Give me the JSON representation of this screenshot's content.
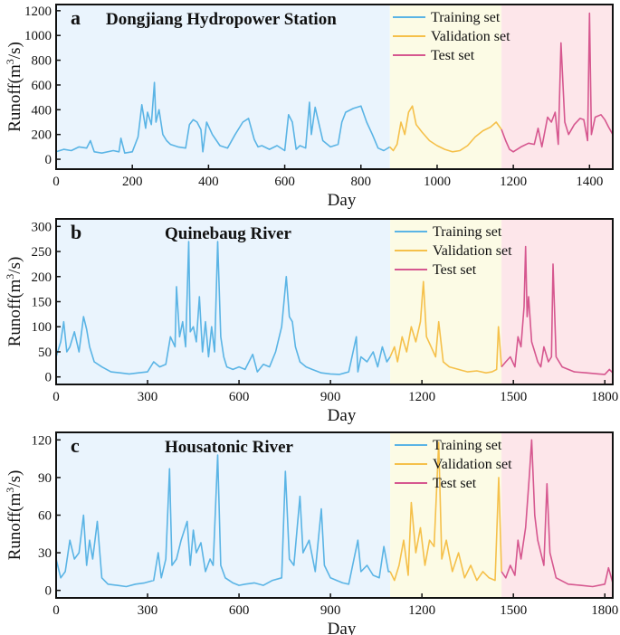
{
  "chart_data": [
    {
      "type": "line",
      "panel": "a",
      "title": "Dongjiang Hydropower Station",
      "xlabel": "Day",
      "ylabel_parts": [
        "Runoff(m",
        "3",
        "/s)"
      ],
      "xlim": [
        0,
        1461
      ],
      "ylim": [
        -80,
        1250
      ],
      "xticks": [
        0,
        200,
        400,
        600,
        800,
        1000,
        1200,
        1400
      ],
      "yticks": [
        0,
        200,
        400,
        600,
        800,
        1000,
        1200
      ],
      "splits": {
        "train_end": 876,
        "val_end": 1169
      },
      "legend": {
        "position": "top-center",
        "entries": [
          "Training set",
          "Validation set",
          "Test set"
        ]
      },
      "series": [
        {
          "name": "Training set",
          "color": "#5ab4e5",
          "x": [
            0,
            20,
            40,
            60,
            80,
            90,
            100,
            120,
            150,
            165,
            170,
            180,
            200,
            215,
            225,
            235,
            240,
            250,
            258,
            262,
            270,
            280,
            290,
            300,
            320,
            340,
            350,
            360,
            370,
            380,
            385,
            395,
            410,
            430,
            450,
            470,
            490,
            505,
            520,
            530,
            540,
            560,
            580,
            600,
            610,
            620,
            630,
            640,
            655,
            665,
            670,
            680,
            700,
            720,
            740,
            750,
            760,
            780,
            800,
            815,
            830,
            845,
            860,
            876
          ],
          "y": [
            60,
            80,
            70,
            100,
            90,
            150,
            60,
            50,
            70,
            60,
            170,
            50,
            60,
            180,
            440,
            250,
            380,
            280,
            620,
            300,
            400,
            200,
            150,
            120,
            100,
            90,
            280,
            320,
            300,
            240,
            60,
            300,
            200,
            110,
            90,
            200,
            300,
            330,
            160,
            100,
            110,
            80,
            110,
            70,
            360,
            300,
            80,
            110,
            90,
            460,
            200,
            420,
            150,
            100,
            120,
            300,
            380,
            410,
            430,
            300,
            200,
            90,
            70,
            100
          ]
        },
        {
          "name": "Validation set",
          "color": "#f5c04a",
          "x": [
            876,
            885,
            895,
            905,
            915,
            925,
            935,
            945,
            960,
            980,
            1000,
            1020,
            1040,
            1060,
            1080,
            1100,
            1120,
            1140,
            1155,
            1169
          ],
          "y": [
            100,
            70,
            120,
            300,
            200,
            380,
            430,
            280,
            220,
            150,
            110,
            80,
            60,
            70,
            110,
            180,
            230,
            260,
            300,
            240
          ]
        },
        {
          "name": "Test set",
          "color": "#d6578f",
          "x": [
            1169,
            1180,
            1190,
            1200,
            1220,
            1240,
            1255,
            1265,
            1275,
            1290,
            1300,
            1310,
            1318,
            1325,
            1335,
            1345,
            1360,
            1375,
            1385,
            1395,
            1400,
            1405,
            1415,
            1430,
            1440,
            1450,
            1461
          ],
          "y": [
            240,
            150,
            80,
            60,
            100,
            130,
            120,
            250,
            100,
            340,
            300,
            380,
            120,
            940,
            300,
            200,
            280,
            330,
            320,
            150,
            1180,
            200,
            340,
            360,
            320,
            260,
            200
          ]
        }
      ]
    },
    {
      "type": "line",
      "panel": "b",
      "title": "Quinebaug River",
      "xlabel": "Day",
      "ylabel_parts": [
        "Runoff(m",
        "3",
        "/s)"
      ],
      "xlim": [
        0,
        1826
      ],
      "ylim": [
        -15,
        315
      ],
      "xticks": [
        0,
        300,
        600,
        900,
        1200,
        1500,
        1800
      ],
      "yticks": [
        0,
        50,
        100,
        150,
        200,
        250,
        300
      ],
      "splits": {
        "train_end": 1096,
        "val_end": 1461
      },
      "legend": {
        "position": "top-center",
        "entries": [
          "Training set",
          "Validation set",
          "Test set"
        ]
      },
      "series": [
        {
          "name": "Training set",
          "color": "#5ab4e5",
          "x": [
            0,
            15,
            25,
            35,
            45,
            60,
            75,
            90,
            100,
            110,
            125,
            150,
            180,
            210,
            240,
            270,
            300,
            320,
            340,
            360,
            375,
            390,
            395,
            405,
            415,
            425,
            435,
            440,
            450,
            460,
            470,
            480,
            490,
            500,
            510,
            520,
            530,
            540,
            550,
            560,
            580,
            600,
            620,
            645,
            660,
            680,
            700,
            720,
            740,
            755,
            765,
            775,
            785,
            800,
            820,
            840,
            870,
            900,
            930,
            960,
            985,
            990,
            1000,
            1020,
            1040,
            1055,
            1070,
            1085,
            1096
          ],
          "y": [
            40,
            70,
            110,
            50,
            60,
            90,
            50,
            120,
            95,
            60,
            30,
            20,
            10,
            8,
            6,
            8,
            10,
            30,
            20,
            25,
            80,
            60,
            180,
            80,
            110,
            60,
            270,
            90,
            100,
            70,
            160,
            50,
            110,
            40,
            100,
            50,
            270,
            80,
            40,
            20,
            15,
            20,
            15,
            45,
            10,
            25,
            20,
            50,
            100,
            200,
            120,
            110,
            60,
            30,
            20,
            15,
            8,
            6,
            5,
            10,
            80,
            10,
            40,
            30,
            50,
            20,
            60,
            30,
            40
          ]
        },
        {
          "name": "Validation set",
          "color": "#f5c04a",
          "x": [
            1096,
            1110,
            1120,
            1135,
            1150,
            1165,
            1180,
            1195,
            1205,
            1215,
            1230,
            1245,
            1255,
            1270,
            1290,
            1320,
            1350,
            1380,
            1410,
            1430,
            1445,
            1451,
            1461
          ],
          "y": [
            40,
            60,
            30,
            80,
            50,
            100,
            70,
            110,
            190,
            80,
            60,
            40,
            110,
            30,
            20,
            15,
            10,
            12,
            8,
            10,
            15,
            100,
            20
          ]
        },
        {
          "name": "Test set",
          "color": "#d6578f",
          "x": [
            1461,
            1475,
            1490,
            1505,
            1515,
            1525,
            1535,
            1540,
            1545,
            1550,
            1560,
            1570,
            1580,
            1590,
            1600,
            1615,
            1625,
            1630,
            1640,
            1660,
            1700,
            1740,
            1780,
            1800,
            1815,
            1826
          ],
          "y": [
            20,
            30,
            40,
            20,
            80,
            60,
            140,
            260,
            120,
            160,
            70,
            50,
            30,
            20,
            60,
            30,
            40,
            225,
            40,
            20,
            10,
            8,
            6,
            5,
            15,
            8
          ]
        }
      ]
    },
    {
      "type": "line",
      "panel": "c",
      "title": "Housatonic River",
      "xlabel": "Day",
      "ylabel_parts": [
        "Runoff(m",
        "3",
        "/s)"
      ],
      "xlim": [
        0,
        1826
      ],
      "ylim": [
        -6,
        126
      ],
      "xticks": [
        0,
        300,
        600,
        900,
        1200,
        1500,
        1800
      ],
      "yticks": [
        0,
        30,
        60,
        90,
        120
      ],
      "splits": {
        "train_end": 1096,
        "val_end": 1461
      },
      "legend": {
        "position": "top-center",
        "entries": [
          "Training set",
          "Validation set",
          "Test set"
        ]
      },
      "series": [
        {
          "name": "Training set",
          "color": "#5ab4e5",
          "x": [
            0,
            15,
            30,
            45,
            60,
            75,
            90,
            100,
            110,
            120,
            135,
            150,
            170,
            200,
            230,
            260,
            290,
            320,
            335,
            345,
            360,
            372,
            380,
            395,
            410,
            430,
            440,
            450,
            460,
            475,
            490,
            505,
            515,
            530,
            540,
            555,
            580,
            600,
            620,
            650,
            680,
            710,
            740,
            752,
            765,
            780,
            800,
            810,
            830,
            850,
            870,
            880,
            900,
            920,
            940,
            960,
            990,
            1000,
            1020,
            1040,
            1060,
            1075,
            1090,
            1096
          ],
          "y": [
            25,
            10,
            15,
            40,
            25,
            30,
            60,
            20,
            40,
            25,
            55,
            10,
            5,
            4,
            3,
            5,
            6,
            8,
            30,
            10,
            25,
            97,
            20,
            25,
            40,
            55,
            20,
            48,
            30,
            38,
            15,
            25,
            20,
            108,
            20,
            10,
            6,
            4,
            5,
            6,
            4,
            8,
            10,
            95,
            25,
            20,
            75,
            30,
            40,
            15,
            65,
            20,
            10,
            8,
            6,
            5,
            40,
            15,
            20,
            12,
            10,
            35,
            15,
            15
          ]
        },
        {
          "name": "Validation set",
          "color": "#f5c04a",
          "x": [
            1096,
            1110,
            1125,
            1140,
            1155,
            1165,
            1180,
            1195,
            1210,
            1225,
            1240,
            1255,
            1265,
            1280,
            1300,
            1320,
            1340,
            1360,
            1380,
            1400,
            1420,
            1440,
            1452,
            1461
          ],
          "y": [
            15,
            8,
            20,
            40,
            12,
            70,
            30,
            50,
            20,
            40,
            35,
            118,
            25,
            40,
            15,
            30,
            10,
            20,
            8,
            15,
            10,
            8,
            90,
            15
          ]
        },
        {
          "name": "Test set",
          "color": "#d6578f",
          "x": [
            1461,
            1475,
            1490,
            1505,
            1515,
            1525,
            1540,
            1552,
            1560,
            1570,
            1580,
            1590,
            1600,
            1610,
            1620,
            1640,
            1680,
            1720,
            1760,
            1800,
            1812,
            1826
          ],
          "y": [
            15,
            10,
            20,
            12,
            40,
            25,
            50,
            90,
            120,
            60,
            40,
            30,
            20,
            85,
            30,
            10,
            5,
            4,
            3,
            5,
            18,
            6
          ]
        }
      ]
    }
  ],
  "colors": {
    "train_line": "#5ab4e5",
    "val_line": "#f5c04a",
    "test_line": "#d6578f",
    "train_bg": "#eaf4fd",
    "val_bg": "#fcfbe5",
    "test_bg": "#fde6ea"
  }
}
